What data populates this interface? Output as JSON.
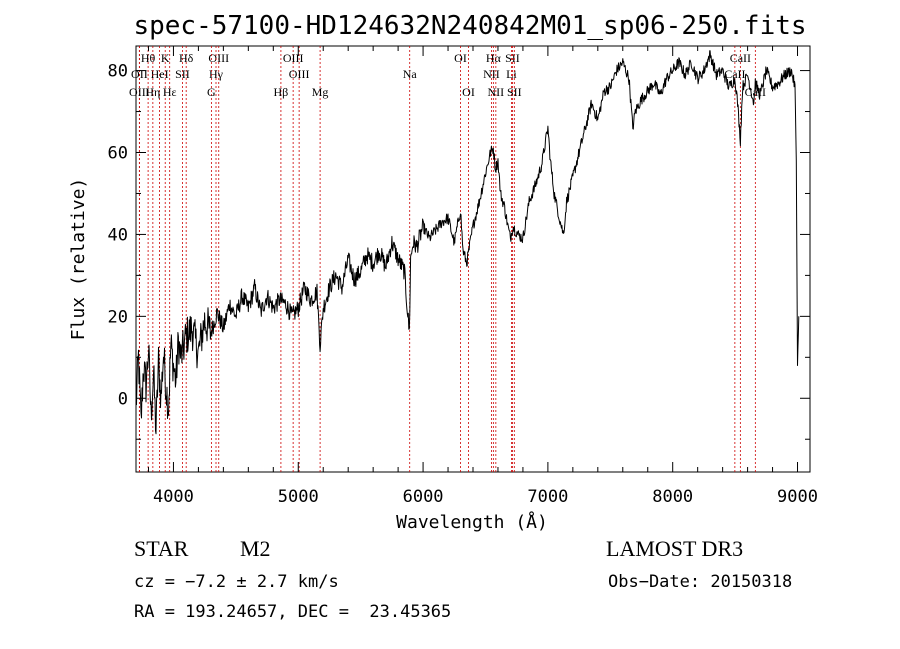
{
  "chart_data": {
    "type": "line",
    "title": "spec-57100-HD124632N240842M01_sp06-250.fits",
    "xlabel": "Wavelength (Å)",
    "ylabel": "Flux (relative)",
    "xlim": [
      3700,
      9100
    ],
    "ylim": [
      -18,
      86
    ],
    "xticks": [
      4000,
      5000,
      6000,
      7000,
      8000,
      9000
    ],
    "yticks": [
      0,
      20,
      40,
      60,
      80
    ],
    "xtick_labels": [
      "4000",
      "5000",
      "6000",
      "7000",
      "8000",
      "9000"
    ],
    "ytick_labels": [
      "0",
      "20",
      "40",
      "60",
      "80"
    ],
    "series": [
      {
        "name": "flux",
        "x": [
          3700,
          3720,
          3740,
          3760,
          3780,
          3800,
          3820,
          3840,
          3860,
          3880,
          3900,
          3920,
          3940,
          3960,
          3980,
          4000,
          4020,
          4040,
          4060,
          4080,
          4100,
          4150,
          4200,
          4250,
          4300,
          4350,
          4400,
          4450,
          4500,
          4550,
          4600,
          4650,
          4700,
          4750,
          4800,
          4850,
          4900,
          4950,
          5000,
          5050,
          5100,
          5150,
          5175,
          5200,
          5250,
          5300,
          5350,
          5400,
          5450,
          5500,
          5550,
          5600,
          5650,
          5700,
          5750,
          5800,
          5850,
          5890,
          5900,
          5920,
          5950,
          6000,
          6050,
          6100,
          6150,
          6200,
          6250,
          6300,
          6320,
          6350,
          6400,
          6450,
          6500,
          6540,
          6563,
          6580,
          6600,
          6620,
          6650,
          6680,
          6700,
          6720,
          6760,
          6800,
          6850,
          6900,
          6950,
          7000,
          7020,
          7050,
          7100,
          7125,
          7150,
          7200,
          7250,
          7300,
          7350,
          7400,
          7450,
          7500,
          7550,
          7600,
          7650,
          7680,
          7700,
          7750,
          7800,
          7850,
          7900,
          7950,
          8000,
          8050,
          8100,
          8150,
          8200,
          8250,
          8300,
          8350,
          8400,
          8450,
          8500,
          8520,
          8542,
          8560,
          8600,
          8650,
          8662,
          8700,
          8750,
          8800,
          8850,
          8900,
          8950,
          8980,
          8990,
          9000,
          9010
        ],
        "y": [
          -2,
          10,
          -6,
          8,
          3,
          12,
          -4,
          6,
          -8,
          9,
          0,
          11,
          3,
          -2,
          13,
          8,
          4,
          14,
          10,
          12,
          15,
          17,
          11,
          19,
          16,
          21,
          17,
          23,
          20,
          25,
          22,
          27,
          21,
          25,
          22,
          24,
          23,
          20,
          22,
          27,
          24,
          26,
          13,
          22,
          27,
          30,
          27,
          34,
          29,
          31,
          35,
          33,
          36,
          32,
          38,
          34,
          31,
          16,
          34,
          38,
          37,
          42,
          39,
          41,
          43,
          44,
          38,
          46,
          36,
          33,
          42,
          48,
          55,
          60,
          61,
          56,
          58,
          50,
          47,
          42,
          39,
          42,
          40,
          39,
          48,
          52,
          57,
          66,
          58,
          50,
          43,
          40,
          48,
          54,
          60,
          66,
          72,
          68,
          75,
          76,
          80,
          82,
          78,
          66,
          70,
          73,
          75,
          77,
          74,
          78,
          80,
          82,
          79,
          82,
          78,
          80,
          84,
          79,
          80,
          76,
          78,
          72,
          63,
          76,
          79,
          72,
          77,
          74,
          80,
          76,
          77,
          79,
          80,
          76,
          58,
          8,
          20
        ]
      }
    ],
    "lines_top_row": [
      {
        "label": "Hθ",
        "x": 3797
      },
      {
        "label": "K",
        "x": 3934
      },
      {
        "label": "Hδ",
        "x": 4102
      },
      {
        "label": "OIII",
        "x": 4363
      },
      {
        "label": "OIII",
        "x": 4959
      },
      {
        "label": "OI",
        "x": 6300
      },
      {
        "label": "Hα",
        "x": 6563
      },
      {
        "label": "SII",
        "x": 6716
      },
      {
        "label": "CaII",
        "x": 8542
      }
    ],
    "lines_middle_row": [
      {
        "label": "OII",
        "x": 3727
      },
      {
        "label": "HeI",
        "x": 3889
      },
      {
        "label": "SII",
        "x": 4072
      },
      {
        "label": "Hγ",
        "x": 4341
      },
      {
        "label": "OIII",
        "x": 5007
      },
      {
        "label": "Na",
        "x": 5893
      },
      {
        "label": "NII",
        "x": 6548
      },
      {
        "label": "Li",
        "x": 6708
      },
      {
        "label": "CaII",
        "x": 8498
      }
    ],
    "lines_bottom_row": [
      {
        "label": "OIII",
        "x": 3727
      },
      {
        "label": "Hη",
        "x": 3835
      },
      {
        "label": "Hε",
        "x": 3970
      },
      {
        "label": "G",
        "x": 4304
      },
      {
        "label": "Hβ",
        "x": 4861
      },
      {
        "label": "Mg",
        "x": 5175
      },
      {
        "label": "OI",
        "x": 6364
      },
      {
        "label": "NII",
        "x": 6583
      },
      {
        "label": "SII",
        "x": 6731
      },
      {
        "label": "CaII",
        "x": 8662
      }
    ],
    "line_color": "#cc0000"
  },
  "info": {
    "object_type": "STAR",
    "spectral_class": "M2",
    "survey": "LAMOST DR3",
    "redshift": "cz = −7.2 ± 2.7 km/s",
    "obs_date": "Obs−Date: 20150318",
    "coordinates": "RA = 193.24657, DEC =  23.45365"
  }
}
